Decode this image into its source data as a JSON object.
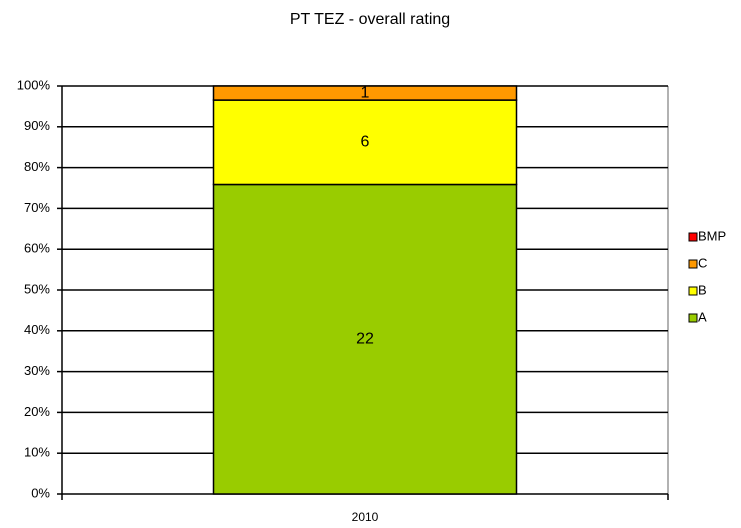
{
  "chart_data": {
    "type": "bar",
    "stacked": "percent",
    "title": "PT TEZ - overall rating",
    "categories": [
      "2010"
    ],
    "series": [
      {
        "name": "A",
        "color": "#99cc00",
        "values": [
          22
        ]
      },
      {
        "name": "B",
        "color": "#ffff00",
        "values": [
          6
        ]
      },
      {
        "name": "C",
        "color": "#ff9900",
        "values": [
          1
        ]
      },
      {
        "name": "BMP",
        "color": "#ff0000",
        "values": [
          0
        ]
      }
    ],
    "ylim": [
      0,
      100
    ],
    "yticks": [
      {
        "value": 0,
        "label": "0%"
      },
      {
        "value": 10,
        "label": "10%"
      },
      {
        "value": 20,
        "label": "20%"
      },
      {
        "value": 30,
        "label": "30%"
      },
      {
        "value": 40,
        "label": "40%"
      },
      {
        "value": 50,
        "label": "50%"
      },
      {
        "value": 60,
        "label": "60%"
      },
      {
        "value": 70,
        "label": "70%"
      },
      {
        "value": 80,
        "label": "80%"
      },
      {
        "value": 90,
        "label": "90%"
      },
      {
        "value": 100,
        "label": "100%"
      }
    ],
    "grid": true,
    "legend": "right"
  }
}
